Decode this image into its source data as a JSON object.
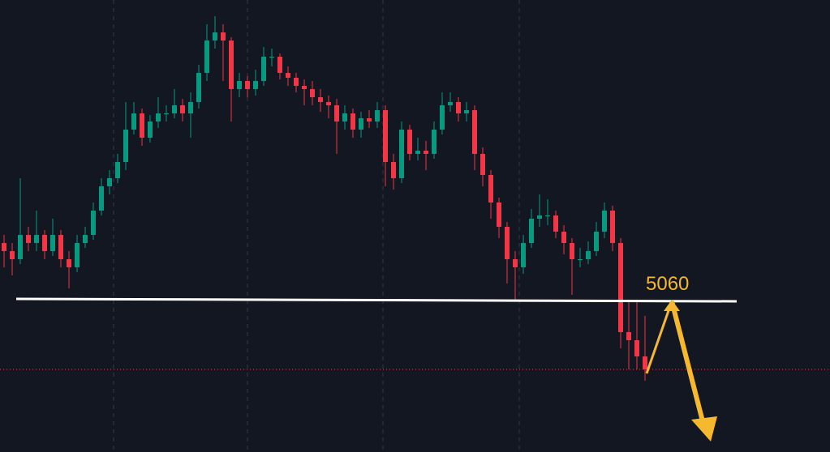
{
  "chart_data": {
    "type": "candlestick",
    "ylim": [
      4966,
      5245
    ],
    "up_color": "#089981",
    "down_color": "#f23645",
    "open": [
      5095,
      5090,
      5085,
      5100,
      5095,
      5100,
      5090,
      5100,
      5085,
      5080,
      5095,
      5100,
      5115,
      5130,
      5135,
      5145,
      5165,
      5175,
      5160,
      5170,
      5175,
      5175,
      5180,
      5175,
      5182,
      5200,
      5220,
      5225,
      5220,
      5190,
      5195,
      5190,
      5195,
      5210,
      5210,
      5200,
      5197,
      5192,
      5190,
      5185,
      5182,
      5180,
      5170,
      5175,
      5165,
      5172,
      5170,
      5177,
      5145,
      5135,
      5165,
      5150,
      5152,
      5150,
      5165,
      5180,
      5182,
      5175,
      5177,
      5150,
      5137,
      5120,
      5105,
      5085,
      5080,
      5095,
      5110,
      5112,
      5112,
      5102,
      5095,
      5085,
      5085,
      5090,
      5102,
      5115,
      5095,
      5040,
      5035,
      5025
    ],
    "high": [
      5100,
      5095,
      5135,
      5105,
      5115,
      5103,
      5110,
      5103,
      5090,
      5100,
      5105,
      5120,
      5135,
      5140,
      5150,
      5182,
      5182,
      5178,
      5174,
      5185,
      5180,
      5190,
      5184,
      5188,
      5205,
      5230,
      5235,
      5230,
      5222,
      5200,
      5198,
      5202,
      5216,
      5215,
      5212,
      5204,
      5200,
      5196,
      5195,
      5190,
      5186,
      5184,
      5180,
      5178,
      5176,
      5177,
      5182,
      5180,
      5150,
      5170,
      5168,
      5160,
      5158,
      5170,
      5188,
      5188,
      5185,
      5182,
      5180,
      5154,
      5140,
      5123,
      5108,
      5090,
      5100,
      5116,
      5125,
      5122,
      5115,
      5106,
      5098,
      5092,
      5096,
      5108,
      5120,
      5118,
      5098,
      5060,
      5060,
      5050
    ],
    "low": [
      5080,
      5075,
      5082,
      5090,
      5090,
      5085,
      5087,
      5080,
      5067,
      5077,
      5092,
      5097,
      5112,
      5125,
      5132,
      5140,
      5162,
      5155,
      5157,
      5166,
      5170,
      5172,
      5170,
      5160,
      5178,
      5195,
      5215,
      5195,
      5170,
      5185,
      5185,
      5186,
      5192,
      5204,
      5196,
      5192,
      5188,
      5180,
      5180,
      5176,
      5172,
      5150,
      5165,
      5160,
      5160,
      5166,
      5166,
      5130,
      5128,
      5132,
      5146,
      5146,
      5140,
      5147,
      5162,
      5176,
      5170,
      5170,
      5140,
      5130,
      5110,
      5098,
      5070,
      5060,
      5076,
      5092,
      5105,
      5106,
      5098,
      5088,
      5063,
      5080,
      5082,
      5087,
      5098,
      5090,
      5030,
      5017,
      5017,
      5010
    ],
    "close": [
      5090,
      5085,
      5100,
      5095,
      5100,
      5090,
      5100,
      5085,
      5080,
      5095,
      5100,
      5115,
      5130,
      5135,
      5145,
      5165,
      5175,
      5160,
      5170,
      5175,
      5175,
      5180,
      5175,
      5182,
      5200,
      5220,
      5225,
      5220,
      5190,
      5195,
      5190,
      5195,
      5210,
      5210,
      5200,
      5197,
      5192,
      5190,
      5185,
      5182,
      5180,
      5170,
      5175,
      5165,
      5172,
      5170,
      5177,
      5145,
      5135,
      5165,
      5150,
      5152,
      5150,
      5165,
      5180,
      5182,
      5175,
      5177,
      5150,
      5137,
      5120,
      5105,
      5085,
      5080,
      5095,
      5110,
      5112,
      5112,
      5102,
      5095,
      5085,
      5085,
      5090,
      5102,
      5115,
      5095,
      5040,
      5035,
      5025,
      5017
    ],
    "level": 5060
  }
}
